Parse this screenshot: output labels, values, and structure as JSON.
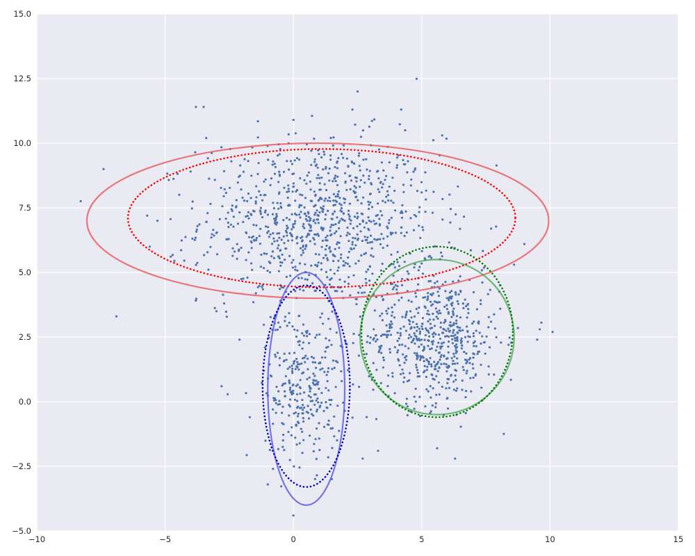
{
  "chart_data": {
    "type": "scatter",
    "title": "",
    "xlabel": "",
    "ylabel": "",
    "xlim": [
      -10,
      15
    ],
    "ylim": [
      -5,
      15
    ],
    "grid": true,
    "xticks": [
      -10,
      -5,
      0,
      5,
      10,
      15
    ],
    "yticks": [
      -5.0,
      -2.5,
      0.0,
      2.5,
      5.0,
      7.5,
      10.0,
      12.5,
      15.0
    ],
    "xtick_labels": [
      "−10",
      "−5",
      "0",
      "5",
      "10",
      "15"
    ],
    "ytick_labels": [
      "−5.0",
      "−2.5",
      "0.0",
      "2.5",
      "5.0",
      "7.5",
      "10.0",
      "12.5",
      "15.0"
    ],
    "background_color": "#eaeaf2",
    "point_color": "#4c72b0",
    "clusters": [
      {
        "center": [
          1,
          7
        ],
        "spread": [
          2.3,
          1.6
        ],
        "count": 900
      },
      {
        "center": [
          5.5,
          2.5
        ],
        "spread": [
          1.3,
          1.3
        ],
        "count": 600
      },
      {
        "center": [
          0.4,
          0.7
        ],
        "spread": [
          0.75,
          1.5
        ],
        "count": 300
      }
    ],
    "outliers": [
      [
        -7.4,
        9.0
      ],
      [
        -6.9,
        3.3
      ],
      [
        -3.8,
        11.4
      ],
      [
        -3.5,
        11.4
      ],
      [
        -3.4,
        10.2
      ],
      [
        2.3,
        11.3
      ],
      [
        2.5,
        12.0
      ],
      [
        4.2,
        11.3
      ],
      [
        5.8,
        10.3
      ],
      [
        0.0,
        10.9
      ],
      [
        9.0,
        6.1
      ],
      [
        10.1,
        2.7
      ],
      [
        9.6,
        2.8
      ],
      [
        9.5,
        2.4
      ],
      [
        8.6,
        5.3
      ],
      [
        0.0,
        -4.4
      ],
      [
        -2.8,
        0.6
      ],
      [
        -2.7,
        3.8
      ],
      [
        -1.0,
        -3.2
      ],
      [
        3.3,
        -1.9
      ],
      [
        6.3,
        -2.2
      ],
      [
        5.6,
        -1.8
      ],
      [
        2.7,
        -2.2
      ],
      [
        -5.7,
        7.2
      ],
      [
        -5.6,
        6.0
      ],
      [
        -5.3,
        7.0
      ],
      [
        -3.0,
        3.5
      ],
      [
        -1.7,
        -0.6
      ],
      [
        -2.1,
        2.4
      ]
    ],
    "ellipses": [
      {
        "name": "red-solid",
        "center": [
          0.95,
          7.0
        ],
        "width": 18.0,
        "height": 6.0,
        "angle": 0,
        "color": "#e8585b",
        "linestyle": "solid",
        "alpha": 0.8
      },
      {
        "name": "red-dotted",
        "center": [
          1.1,
          7.1
        ],
        "width": 15.1,
        "height": 5.35,
        "angle": 0,
        "color": "#ff0000",
        "linestyle": "dotted",
        "alpha": 1.0
      },
      {
        "name": "green-solid",
        "center": [
          5.6,
          2.5
        ],
        "width": 6.0,
        "height": 6.0,
        "angle": 0,
        "color": "#3a9e48",
        "linestyle": "solid",
        "alpha": 0.7
      },
      {
        "name": "green-dotted",
        "center": [
          5.6,
          2.7
        ],
        "width": 5.9,
        "height": 6.6,
        "angle": 0,
        "color": "#007a00",
        "linestyle": "dotted",
        "alpha": 1.0
      },
      {
        "name": "blue-solid",
        "center": [
          0.5,
          0.5
        ],
        "width": 3.0,
        "height": 9.0,
        "angle": 0,
        "color": "#5555e8",
        "linestyle": "solid",
        "alpha": 0.8
      },
      {
        "name": "blue-dotted",
        "center": [
          0.5,
          0.6
        ],
        "width": 3.4,
        "height": 7.8,
        "angle": 0,
        "color": "#0000cc",
        "linestyle": "dotted",
        "alpha": 1.0
      }
    ]
  }
}
